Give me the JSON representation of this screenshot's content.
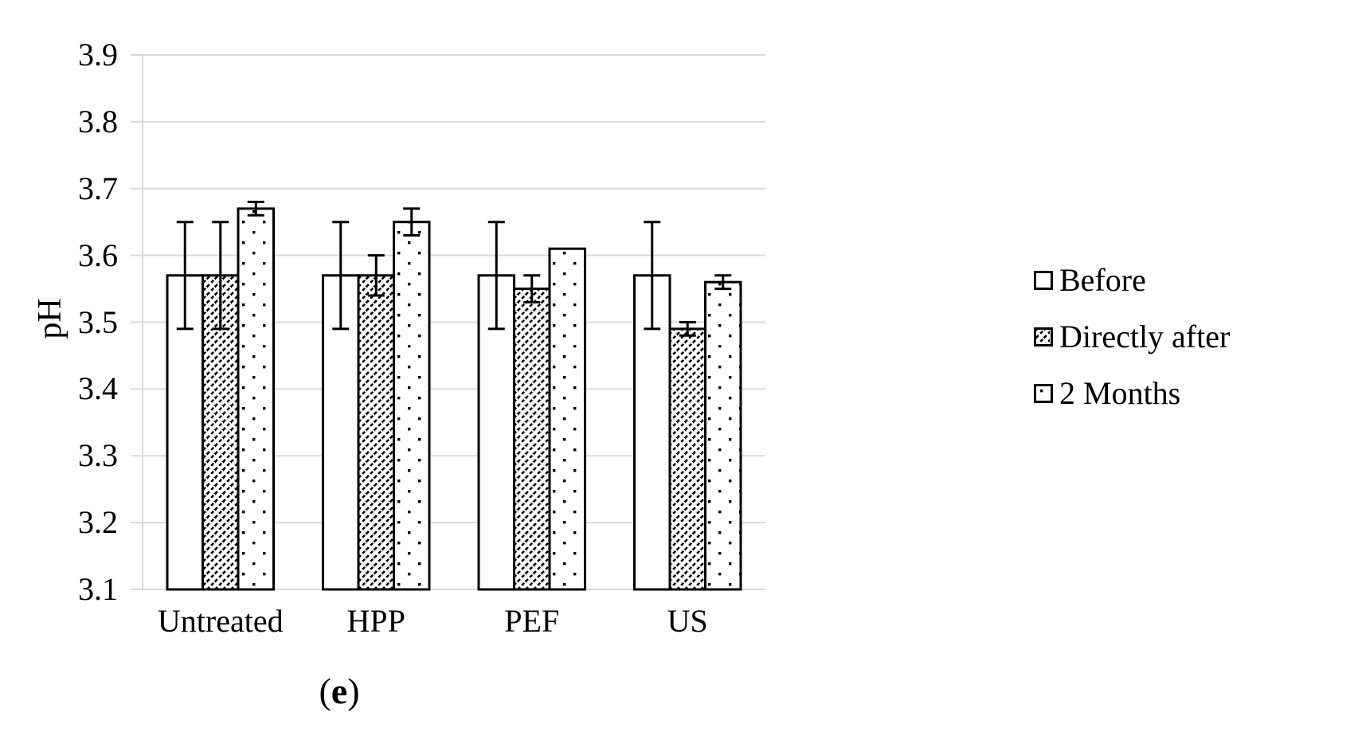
{
  "figure": {
    "background": "#ffffff",
    "caption": {
      "prefix": "(",
      "label": "e",
      "suffix": ")"
    }
  },
  "chart_data": {
    "type": "bar",
    "title": "",
    "xlabel": "",
    "ylabel": "pH",
    "ylim": [
      3.1,
      3.9
    ],
    "ytick_interval": 0.1,
    "yticks": [
      "3.9",
      "3.8",
      "3.7",
      "3.6",
      "3.5",
      "3.4",
      "3.3",
      "3.2",
      "3.1"
    ],
    "categories": [
      "Untreated",
      "HPP",
      "PEF",
      "US"
    ],
    "series": [
      {
        "name": "Before",
        "pattern": "plain-white",
        "values": [
          3.57,
          3.57,
          3.57,
          3.57
        ],
        "errors": [
          0.08,
          0.08,
          0.08,
          0.08
        ]
      },
      {
        "name": "Directly after",
        "pattern": "diagonal-hatch",
        "values": [
          3.57,
          3.57,
          3.55,
          3.49
        ],
        "errors": [
          0.08,
          0.03,
          0.02,
          0.01
        ]
      },
      {
        "name": "2 Months",
        "pattern": "dots",
        "values": [
          3.67,
          3.65,
          3.61,
          3.56
        ],
        "errors": [
          0.01,
          0.02,
          0,
          0.01
        ]
      }
    ],
    "grid": "horizontal",
    "legend_position": "right",
    "colors": {
      "bar_outline": "#000000",
      "grid": "#d9d9d9",
      "text": "#000000",
      "background": "#ffffff"
    }
  }
}
